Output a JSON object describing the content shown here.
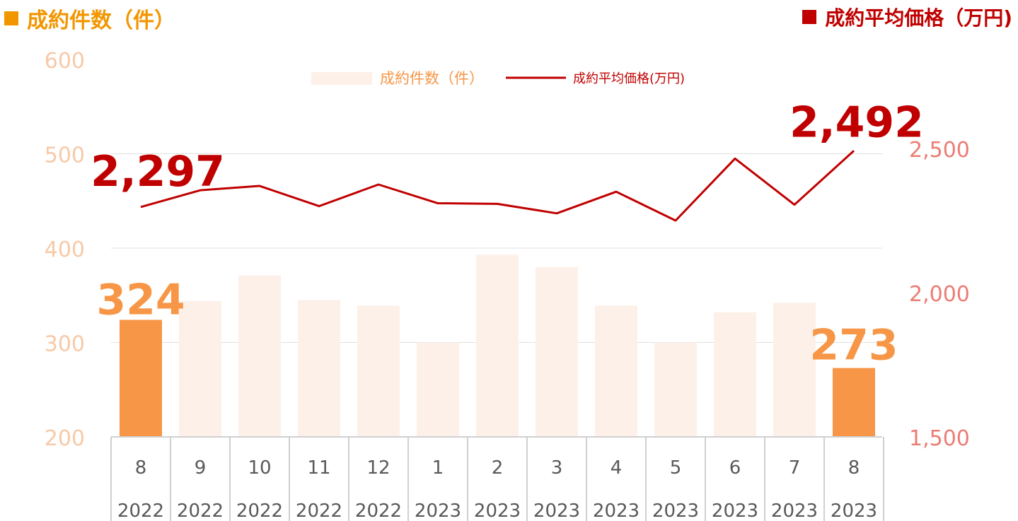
{
  "header": {
    "left_title": "成約件数（件）",
    "right_title": "成約平均価格（万円)"
  },
  "colors": {
    "bar_light": "#fdf0e8",
    "bar_highlight": "#f79646",
    "line": "#c00000",
    "left_axis": "#f7c9a7",
    "right_axis": "#ec7c74",
    "count_label": "#f79646",
    "price_label": "#c00000",
    "header_left": "#f29600",
    "header_right": "#c00000"
  },
  "chart_data": {
    "type": "bar+line",
    "categories": [
      {
        "month": "8",
        "year": "2022"
      },
      {
        "month": "9",
        "year": "2022"
      },
      {
        "month": "10",
        "year": "2022"
      },
      {
        "month": "11",
        "year": "2022"
      },
      {
        "month": "12",
        "year": "2022"
      },
      {
        "month": "1",
        "year": "2023"
      },
      {
        "month": "2",
        "year": "2023"
      },
      {
        "month": "3",
        "year": "2023"
      },
      {
        "month": "4",
        "year": "2023"
      },
      {
        "month": "5",
        "year": "2023"
      },
      {
        "month": "6",
        "year": "2023"
      },
      {
        "month": "7",
        "year": "2023"
      },
      {
        "month": "8",
        "year": "2023"
      }
    ],
    "series": [
      {
        "name": "成約件数（件）",
        "type": "bar",
        "axis": "left",
        "values": [
          324,
          344,
          371,
          345,
          339,
          300,
          393,
          380,
          339,
          300,
          332,
          342,
          273
        ],
        "highlight": [
          0,
          12
        ]
      },
      {
        "name": "成約平均価格(万円)",
        "type": "line",
        "axis": "right",
        "values": [
          2297,
          2355,
          2370,
          2300,
          2375,
          2310,
          2308,
          2275,
          2350,
          2250,
          2465,
          2305,
          2492
        ]
      }
    ],
    "left_axis": {
      "ylim": [
        200,
        600
      ],
      "ticks": [
        "200",
        "300",
        "400",
        "500",
        "600"
      ]
    },
    "right_axis": {
      "ylim": [
        1500,
        2500
      ],
      "ticks": [
        "1,500",
        "2,000",
        "2,500"
      ]
    },
    "data_labels": {
      "count_first": "324",
      "count_last": "273",
      "price_first": "2,297",
      "price_last": "2,492"
    },
    "legend": {
      "bar_label": "成約件数（件）",
      "line_label": "成約平均価格(万円)",
      "position": "top-center"
    },
    "grid": true
  }
}
